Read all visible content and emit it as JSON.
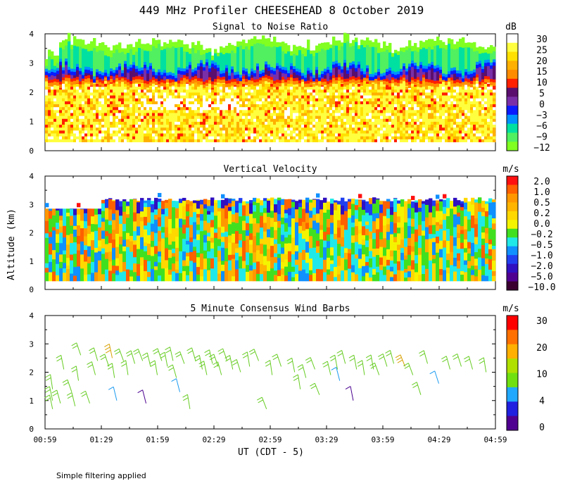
{
  "title": "449 MHz Profiler CHEESEHEAD  8 October 2019",
  "footnote": "Simple filtering applied",
  "shared_ylabel": "Altitude (km)",
  "xlabel": "UT  (CDT - 5)",
  "chart_data": [
    {
      "type": "heatmap",
      "title": "Signal to Noise Ratio",
      "ylabel": "Altitude (km)",
      "ylim": [
        0,
        4
      ],
      "yticks": [
        "0",
        "1",
        "2",
        "3",
        "4"
      ],
      "x_range_hours_ut": [
        0.983,
        4.983
      ],
      "xticks": [
        "00:59",
        "01:29",
        "01:59",
        "02:29",
        "02:59",
        "03:29",
        "03:59",
        "04:29",
        "04:59"
      ],
      "colorbar": {
        "unit": "dB",
        "labels": [
          "30",
          "25",
          "20",
          "15",
          "10",
          "5",
          "0",
          "−3",
          "−6",
          "−9",
          "−12"
        ],
        "colors": [
          "#ffffff",
          "#ffff40",
          "#ffe000",
          "#ffb000",
          "#ff8c00",
          "#ff2000",
          "#5a0f6e",
          "#7a2fa8",
          "#0a1aff",
          "#0090ff",
          "#00e0a0",
          "#50f060",
          "#80ff20"
        ]
      },
      "description_levels_km": {
        "data_bottom": 0.3,
        "bright_band_top": 2.3,
        "dark_band": [
          2.3,
          3.0
        ],
        "data_top": 3.5
      }
    },
    {
      "type": "heatmap",
      "title": "Vertical Velocity",
      "ylabel": "Altitude (km)",
      "ylim": [
        0,
        4
      ],
      "yticks": [
        "0",
        "1",
        "2",
        "3",
        "4"
      ],
      "xticks": [
        "00:59",
        "01:29",
        "01:59",
        "02:29",
        "02:59",
        "03:29",
        "03:59",
        "04:29",
        "04:59"
      ],
      "colorbar": {
        "unit": "m/s",
        "labels": [
          "2.0",
          "1.0",
          "0.5",
          "0.2",
          "0.0",
          "−0.2",
          "−0.5",
          "−1.0",
          "−2.0",
          "−5.0",
          "−10.0"
        ],
        "colors": [
          "#ff1010",
          "#ff6000",
          "#ff9800",
          "#ffb400",
          "#ffd800",
          "#f4f400",
          "#40e020",
          "#20e8e8",
          "#1090ff",
          "#2040f0",
          "#3010c0",
          "#500090",
          "#3a0030"
        ]
      },
      "description_levels_km": {
        "data_bottom": 0.3,
        "data_top": 3.2
      }
    },
    {
      "type": "scatter",
      "subtype": "wind_barbs",
      "title": "5 Minute Consensus Wind Barbs",
      "ylabel": "Altitude (km)",
      "ylim": [
        0,
        4
      ],
      "yticks": [
        "0",
        "1",
        "2",
        "3",
        "4"
      ],
      "xticks": [
        "00:59",
        "01:29",
        "01:59",
        "02:29",
        "02:59",
        "03:29",
        "03:59",
        "04:29",
        "04:59"
      ],
      "colorbar": {
        "unit": "m/s",
        "labels": [
          "30",
          "20",
          "10",
          "4",
          "0"
        ],
        "colors": [
          "#ff0000",
          "#ff7000",
          "#ffb000",
          "#b0e000",
          "#70e010",
          "#20a8ff",
          "#2020e0",
          "#500090"
        ]
      },
      "barbs": [
        {
          "t": 1.05,
          "z": 1.4,
          "spd": 9
        },
        {
          "t": 1.05,
          "z": 1.0,
          "spd": 8
        },
        {
          "t": 1.05,
          "z": 0.7,
          "spd": 8
        },
        {
          "t": 1.12,
          "z": 0.9,
          "spd": 9
        },
        {
          "t": 1.15,
          "z": 2.1,
          "spd": 10
        },
        {
          "t": 1.22,
          "z": 1.3,
          "spd": 9
        },
        {
          "t": 1.25,
          "z": 0.8,
          "spd": 8
        },
        {
          "t": 1.28,
          "z": 1.7,
          "spd": 10
        },
        {
          "t": 1.3,
          "z": 2.6,
          "spd": 12
        },
        {
          "t": 1.38,
          "z": 0.9,
          "spd": 8
        },
        {
          "t": 1.43,
          "z": 1.9,
          "spd": 10
        },
        {
          "t": 1.45,
          "z": 2.4,
          "spd": 11
        },
        {
          "t": 1.55,
          "z": 2.2,
          "spd": 12
        },
        {
          "t": 1.58,
          "z": 2.5,
          "spd": 16
        },
        {
          "t": 1.6,
          "z": 1.8,
          "spd": 10
        },
        {
          "t": 1.62,
          "z": 1.0,
          "spd": 4
        },
        {
          "t": 1.68,
          "z": 2.4,
          "spd": 12
        },
        {
          "t": 1.72,
          "z": 1.9,
          "spd": 10
        },
        {
          "t": 1.78,
          "z": 2.3,
          "spd": 11
        },
        {
          "t": 1.85,
          "z": 2.4,
          "spd": 11
        },
        {
          "t": 1.88,
          "z": 0.9,
          "spd": 2
        },
        {
          "t": 1.92,
          "z": 2.2,
          "spd": 10
        },
        {
          "t": 1.98,
          "z": 1.9,
          "spd": 10
        },
        {
          "t": 2.02,
          "z": 2.4,
          "spd": 11
        },
        {
          "t": 2.07,
          "z": 2.2,
          "spd": 10
        },
        {
          "t": 2.12,
          "z": 2.4,
          "spd": 11
        },
        {
          "t": 2.15,
          "z": 1.8,
          "spd": 10
        },
        {
          "t": 2.18,
          "z": 1.3,
          "spd": 5
        },
        {
          "t": 2.22,
          "z": 2.3,
          "spd": 11
        },
        {
          "t": 2.27,
          "z": 0.7,
          "spd": 8
        },
        {
          "t": 2.32,
          "z": 2.4,
          "spd": 10
        },
        {
          "t": 2.38,
          "z": 2.1,
          "spd": 10
        },
        {
          "t": 2.42,
          "z": 1.9,
          "spd": 10
        },
        {
          "t": 2.47,
          "z": 2.3,
          "spd": 10
        },
        {
          "t": 2.52,
          "z": 2.2,
          "spd": 10
        },
        {
          "t": 2.55,
          "z": 1.9,
          "spd": 10
        },
        {
          "t": 2.6,
          "z": 2.4,
          "spd": 11
        },
        {
          "t": 2.65,
          "z": 2.1,
          "spd": 10
        },
        {
          "t": 2.72,
          "z": 2.0,
          "spd": 10
        },
        {
          "t": 2.8,
          "z": 2.2,
          "spd": 10
        },
        {
          "t": 2.88,
          "z": 2.4,
          "spd": 11
        },
        {
          "t": 2.95,
          "z": 0.7,
          "spd": 8
        },
        {
          "t": 3.0,
          "z": 1.9,
          "spd": 9
        },
        {
          "t": 3.08,
          "z": 2.2,
          "spd": 10
        },
        {
          "t": 3.2,
          "z": 2.0,
          "spd": 9
        },
        {
          "t": 3.25,
          "z": 1.4,
          "spd": 8
        },
        {
          "t": 3.3,
          "z": 1.8,
          "spd": 9
        },
        {
          "t": 3.38,
          "z": 2.1,
          "spd": 10
        },
        {
          "t": 3.42,
          "z": 1.2,
          "spd": 9
        },
        {
          "t": 3.52,
          "z": 1.9,
          "spd": 9
        },
        {
          "t": 3.58,
          "z": 2.1,
          "spd": 10
        },
        {
          "t": 3.6,
          "z": 1.7,
          "spd": 5
        },
        {
          "t": 3.65,
          "z": 2.3,
          "spd": 10
        },
        {
          "t": 3.72,
          "z": 1.0,
          "spd": 2
        },
        {
          "t": 3.75,
          "z": 2.1,
          "spd": 10
        },
        {
          "t": 3.82,
          "z": 1.9,
          "spd": 10
        },
        {
          "t": 3.9,
          "z": 2.1,
          "spd": 10
        },
        {
          "t": 3.95,
          "z": 1.9,
          "spd": 10
        },
        {
          "t": 4.02,
          "z": 2.2,
          "spd": 10
        },
        {
          "t": 4.08,
          "z": 2.3,
          "spd": 11
        },
        {
          "t": 4.18,
          "z": 2.2,
          "spd": 14
        },
        {
          "t": 4.25,
          "z": 1.9,
          "spd": 10
        },
        {
          "t": 4.32,
          "z": 1.2,
          "spd": 9
        },
        {
          "t": 4.38,
          "z": 2.3,
          "spd": 11
        },
        {
          "t": 4.48,
          "z": 1.6,
          "spd": 5
        },
        {
          "t": 4.58,
          "z": 2.1,
          "spd": 10
        },
        {
          "t": 4.68,
          "z": 2.2,
          "spd": 10
        },
        {
          "t": 4.78,
          "z": 2.1,
          "spd": 10
        },
        {
          "t": 4.9,
          "z": 2.0,
          "spd": 10
        }
      ]
    }
  ]
}
